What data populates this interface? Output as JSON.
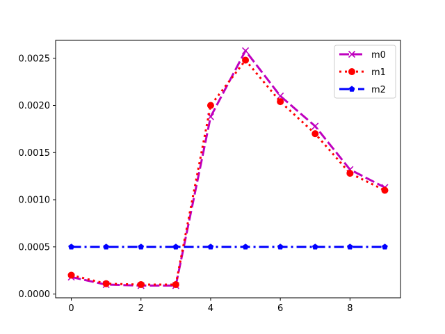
{
  "chart_data": {
    "type": "line",
    "title": "",
    "xlabel": "",
    "ylabel": "",
    "x": [
      0,
      1,
      2,
      3,
      4,
      5,
      6,
      7,
      8,
      9
    ],
    "xlim": [
      -0.45,
      9.45
    ],
    "ylim": [
      -4e-05,
      0.00269
    ],
    "xticks": [
      0,
      2,
      4,
      6,
      8
    ],
    "xtick_labels": [
      "0",
      "2",
      "4",
      "6",
      "8"
    ],
    "yticks": [
      0,
      0.0005,
      0.001,
      0.0015,
      0.002,
      0.0025
    ],
    "ytick_labels": [
      "0.0000",
      "0.0005",
      "0.0010",
      "0.0015",
      "0.0020",
      "0.0025"
    ],
    "grid": false,
    "legend": {
      "position": "top-right"
    },
    "series": [
      {
        "name": "m0",
        "color": "#bf00bf",
        "linestyle": "dashed",
        "marker": "x",
        "values": [
          0.00018,
          0.0001,
          9e-05,
          9e-05,
          0.00188,
          0.00258,
          0.0021,
          0.00178,
          0.00132,
          0.00113
        ]
      },
      {
        "name": "m1",
        "color": "#ff0000",
        "linestyle": "dotted",
        "marker": "circle",
        "values": [
          0.0002,
          0.00011,
          0.0001,
          0.0001,
          0.002,
          0.00248,
          0.00204,
          0.0017,
          0.00128,
          0.0011
        ]
      },
      {
        "name": "m2",
        "color": "#0000ff",
        "linestyle": "dashdot",
        "marker": "pentagon",
        "values": [
          0.0005,
          0.0005,
          0.0005,
          0.0005,
          0.0005,
          0.0005,
          0.0005,
          0.0005,
          0.0005,
          0.0005
        ]
      }
    ]
  }
}
